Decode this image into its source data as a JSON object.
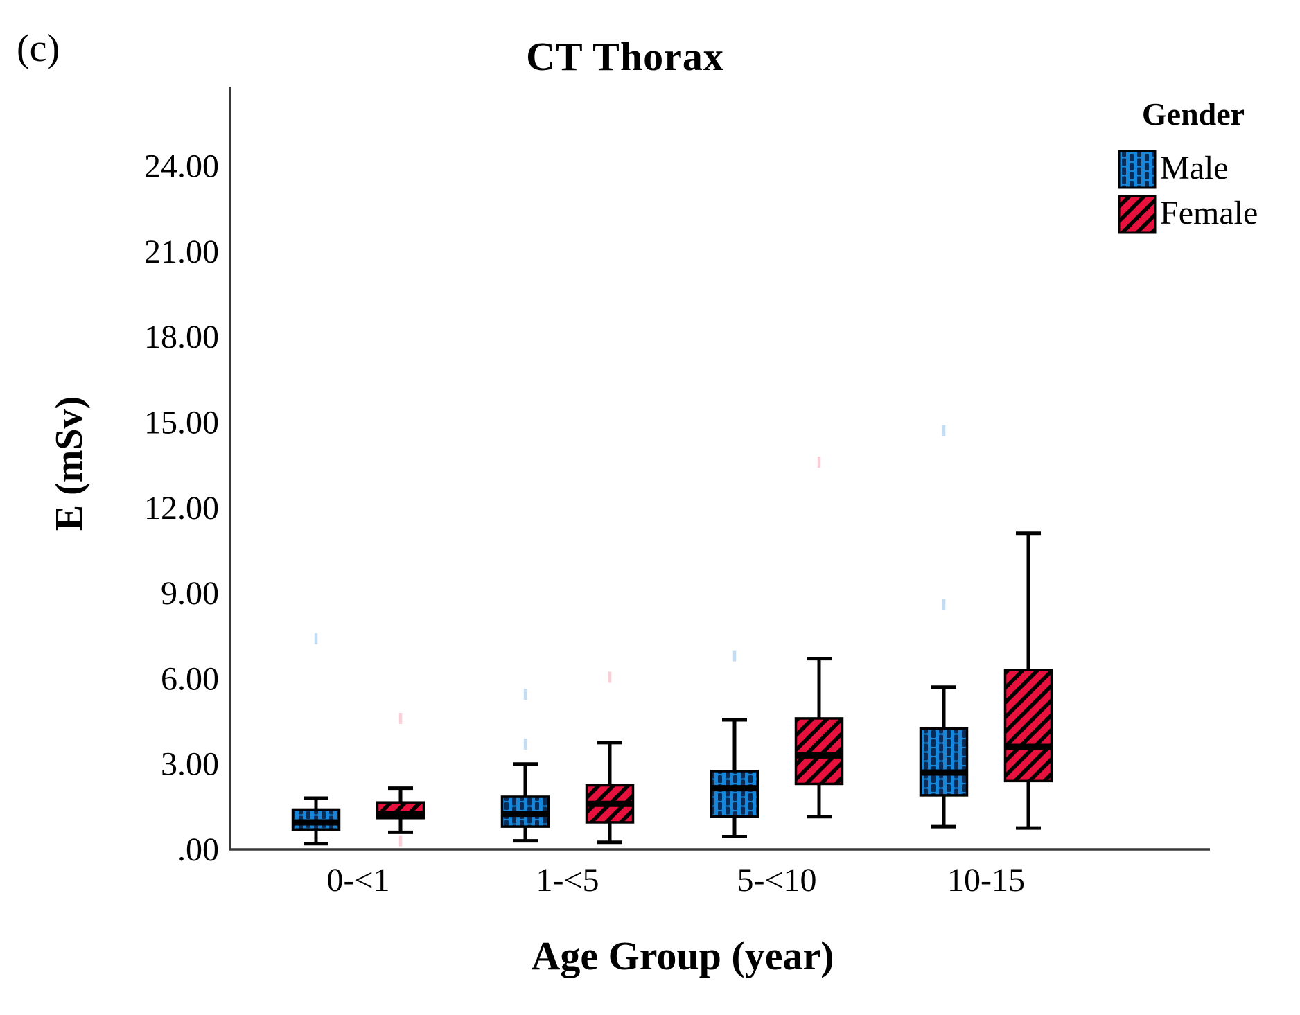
{
  "figure": {
    "panel_label": "(c)",
    "title": "CT Thorax",
    "x_label": "Age Group (year)",
    "y_label": "E (mSv)"
  },
  "legend": {
    "title": "Gender",
    "items": [
      {
        "label": "Male",
        "color": "#1787DB",
        "pattern": "dots"
      },
      {
        "label": "Female",
        "color": "#E8103C",
        "pattern": "diagonal-stripes"
      }
    ]
  },
  "chart_data": {
    "type": "boxplot",
    "title": "CT Thorax",
    "xlabel": "Age Group (year)",
    "ylabel": "E (mSv)",
    "categories": [
      "0-<1",
      "1-<5",
      "5-<10",
      "10-15"
    ],
    "ylim": [
      0,
      26.8
    ],
    "yticks": {
      "values": [
        0,
        3,
        6,
        9,
        12,
        15,
        18,
        21,
        24
      ],
      "labels": [
        ".00",
        "3.00",
        "6.00",
        "9.00",
        "12.00",
        "15.00",
        "18.00",
        "21.00",
        "24.00"
      ]
    },
    "grid": false,
    "legend_position": "top-right",
    "axis_color": "#3A3A3A",
    "series": [
      {
        "name": "Male",
        "fill_color": "#1787DB",
        "pattern": "dots",
        "pattern_color": "#0A2B55",
        "outlier_color": "#B9D7F2",
        "boxes": [
          {
            "whisker_low": 0.2,
            "q1": 0.7,
            "median": 0.95,
            "q3": 1.4,
            "whisker_high": 1.8
          },
          {
            "whisker_low": 0.3,
            "q1": 0.8,
            "median": 1.25,
            "q3": 1.85,
            "whisker_high": 3.0
          },
          {
            "whisker_low": 0.45,
            "q1": 1.15,
            "median": 2.15,
            "q3": 2.75,
            "whisker_high": 4.55
          },
          {
            "whisker_low": 0.8,
            "q1": 1.9,
            "median": 2.7,
            "q3": 4.25,
            "whisker_high": 5.7
          }
        ],
        "faint_outliers": [
          [
            0,
            7.4
          ],
          [
            1,
            5.45
          ],
          [
            1,
            3.7
          ],
          [
            2,
            6.8
          ],
          [
            3,
            14.7
          ],
          [
            3,
            8.6
          ]
        ]
      },
      {
        "name": "Female",
        "fill_color": "#E8103C",
        "pattern": "diagonal-stripes",
        "pattern_color": "#000000",
        "outlier_color": "#F9C6D0",
        "boxes": [
          {
            "whisker_low": 0.6,
            "q1": 1.1,
            "median": 1.25,
            "q3": 1.65,
            "whisker_high": 2.15
          },
          {
            "whisker_low": 0.25,
            "q1": 0.95,
            "median": 1.6,
            "q3": 2.25,
            "whisker_high": 3.75
          },
          {
            "whisker_low": 1.15,
            "q1": 2.3,
            "median": 3.3,
            "q3": 4.6,
            "whisker_high": 6.7
          },
          {
            "whisker_low": 0.75,
            "q1": 2.4,
            "median": 3.6,
            "q3": 6.3,
            "whisker_high": 11.1
          }
        ],
        "faint_outliers": [
          [
            0,
            4.6
          ],
          [
            0,
            0.3
          ],
          [
            1,
            6.05
          ],
          [
            2,
            13.6
          ]
        ]
      }
    ]
  }
}
